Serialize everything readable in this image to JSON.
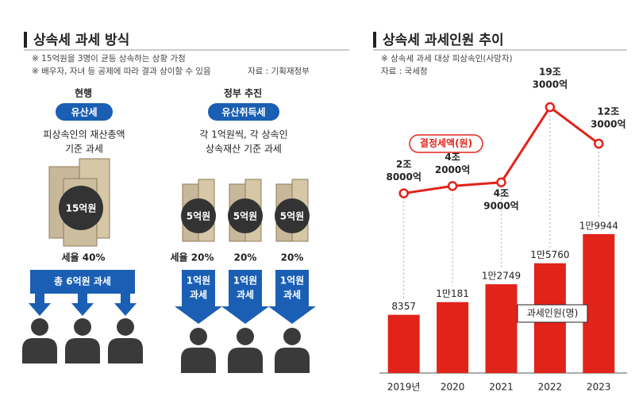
{
  "left": {
    "title": "상속세 과세 방식",
    "notes": [
      "※ 15억원을 3명이 균등 상속하는 상황 가정",
      "※ 배우자, 자녀 등 공제에 따라 결과 상이할 수 있음"
    ],
    "source": "자료 : 기획재정부",
    "current": {
      "heading": "현행",
      "tag": "유산세",
      "desc": [
        "피상속인의 재산총액",
        "기준 과세"
      ],
      "amount": "15억원",
      "rate": "세율 40%",
      "tax": "총 6억원 과세"
    },
    "proposed": {
      "heading": "정부 추진",
      "tag": "유산취득세",
      "desc": [
        "각 1억원씩, 각 상속인",
        "상속재산 기준 과세"
      ],
      "amounts": [
        "5억원",
        "5억원",
        "5억원"
      ],
      "rates": [
        "세율 20%",
        "20%",
        "20%"
      ],
      "taxes": [
        [
          "1억원",
          "과세"
        ],
        [
          "1억원",
          "과세"
        ],
        [
          "1억원",
          "과세"
        ]
      ]
    }
  },
  "chart_data": {
    "type": "bar_line",
    "title": "상속세 과세인원 추이",
    "notes": [
      "※ 상속세 과세 대상 피상속인(사망자)",
      "자료 : 국세청"
    ],
    "categories": [
      "2019년",
      "2020",
      "2021",
      "2022",
      "2023"
    ],
    "series": [
      {
        "name": "과세인원(명)",
        "type": "bar",
        "color": "#e2231a",
        "values": [
          8357,
          10181,
          12749,
          15760,
          19944
        ],
        "value_labels": [
          "8357",
          "1만181",
          "1만2749",
          "1만5760",
          "1만9944"
        ]
      },
      {
        "name": "결정세액(원)",
        "type": "line",
        "color": "#e2231a",
        "values": [
          28000,
          42000,
          49000,
          193000,
          123000
        ],
        "value_labels": [
          [
            "2조",
            "8000억"
          ],
          [
            "4조",
            "2000억"
          ],
          [
            "4조",
            "9000억"
          ],
          [
            "19조",
            "3000억"
          ],
          [
            "12조",
            "3000억"
          ]
        ]
      }
    ]
  }
}
